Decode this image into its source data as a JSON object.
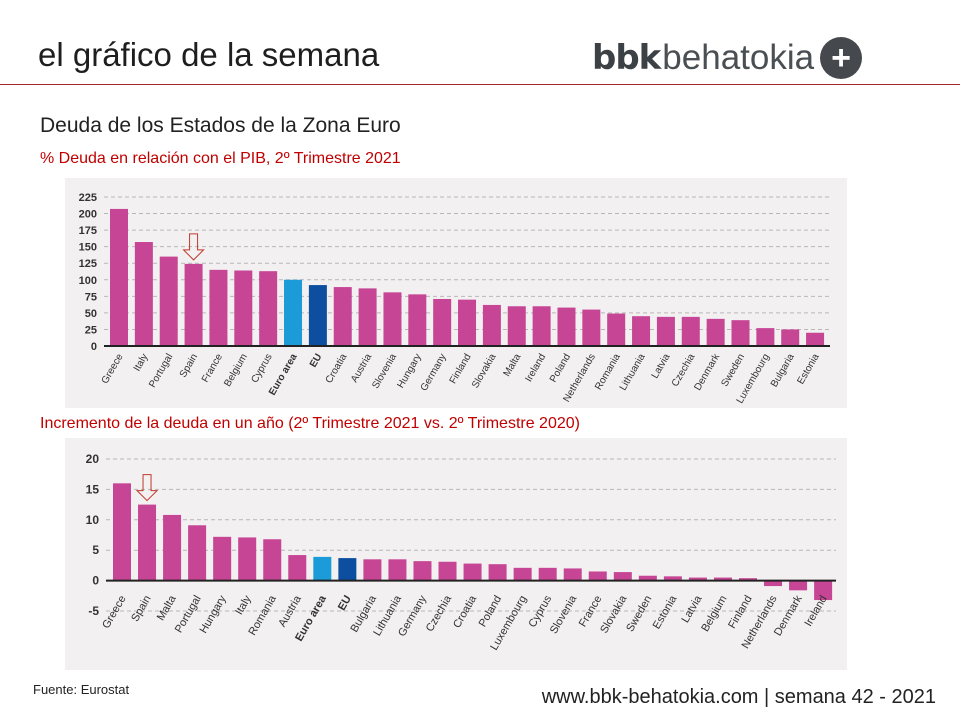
{
  "header": {
    "title": "el gráfico de la semana",
    "logo_bold": "bbk",
    "logo_light": "behatokia",
    "logo_symbol": "+"
  },
  "heading": "Deuda de los Estados de la Zona Euro",
  "colors": {
    "country": "#c64594",
    "euro_area": "#1b9bd7",
    "eu": "#0d4f9e",
    "accent_red": "#c00000",
    "panel_bg": "#f3f0f1"
  },
  "chart_data": [
    {
      "type": "bar",
      "title": "% Deuda en relación con el PIB, 2º Trimestre 2021",
      "categories": [
        "Greece",
        "Italy",
        "Portugal",
        "Spain",
        "France",
        "Belgium",
        "Cyprus",
        "Euro area",
        "EU",
        "Croatia",
        "Austria",
        "Slovenia",
        "Hungary",
        "Germany",
        "Finland",
        "Slovakia",
        "Malta",
        "Ireland",
        "Poland",
        "Netherlands",
        "Romania",
        "Lithuania",
        "Latvia",
        "Czechia",
        "Denmark",
        "Sweden",
        "Luxembourg",
        "Bulgaria",
        "Estonia"
      ],
      "values": [
        207,
        157,
        135,
        124,
        115,
        114,
        113,
        100,
        92,
        89,
        87,
        81,
        78,
        71,
        70,
        62,
        60,
        60,
        58,
        55,
        49,
        45,
        44,
        44,
        41,
        39,
        27,
        25,
        20
      ],
      "highlight": {
        "Euro area": "euro_area",
        "EU": "eu"
      },
      "marked_category": "Spain",
      "ylim": [
        0,
        225
      ],
      "yticks": [
        0,
        25,
        50,
        75,
        100,
        125,
        150,
        175,
        200,
        225
      ],
      "grid": true,
      "xlabel": "",
      "ylabel": ""
    },
    {
      "type": "bar",
      "title": "Incremento de la deuda en un año (2º Trimestre 2021 vs. 2º Trimestre 2020)",
      "categories": [
        "Greece",
        "Spain",
        "Malta",
        "Portugal",
        "Hungary",
        "Italy",
        "Romania",
        "Austria",
        "Euro area",
        "EU",
        "Bulgaria",
        "Lithuania",
        "Germany",
        "Czechia",
        "Croatia",
        "Poland",
        "Luxembourg",
        "Cyprus",
        "Slovenia",
        "France",
        "Slovakia",
        "Sweden",
        "Estonia",
        "Latvia",
        "Belgium",
        "Finland",
        "Netherlands",
        "Denmark",
        "Ireland"
      ],
      "values": [
        16.0,
        12.5,
        10.8,
        9.1,
        7.2,
        7.1,
        6.8,
        4.2,
        3.9,
        3.7,
        3.5,
        3.5,
        3.2,
        3.1,
        2.8,
        2.7,
        2.1,
        2.1,
        2.0,
        1.5,
        1.4,
        0.8,
        0.7,
        0.5,
        0.5,
        0.4,
        -0.9,
        -1.6,
        -3.2
      ],
      "highlight": {
        "Euro area": "euro_area",
        "EU": "eu"
      },
      "marked_category": "Spain",
      "ylim": [
        -5,
        20
      ],
      "yticks": [
        -5,
        0,
        5,
        10,
        15,
        20
      ],
      "grid": true,
      "xlabel": "",
      "ylabel": ""
    }
  ],
  "footer": {
    "source": "Fuente: Eurostat",
    "site": "www.bbk-behatokia.com | semana 42 - 2021"
  }
}
